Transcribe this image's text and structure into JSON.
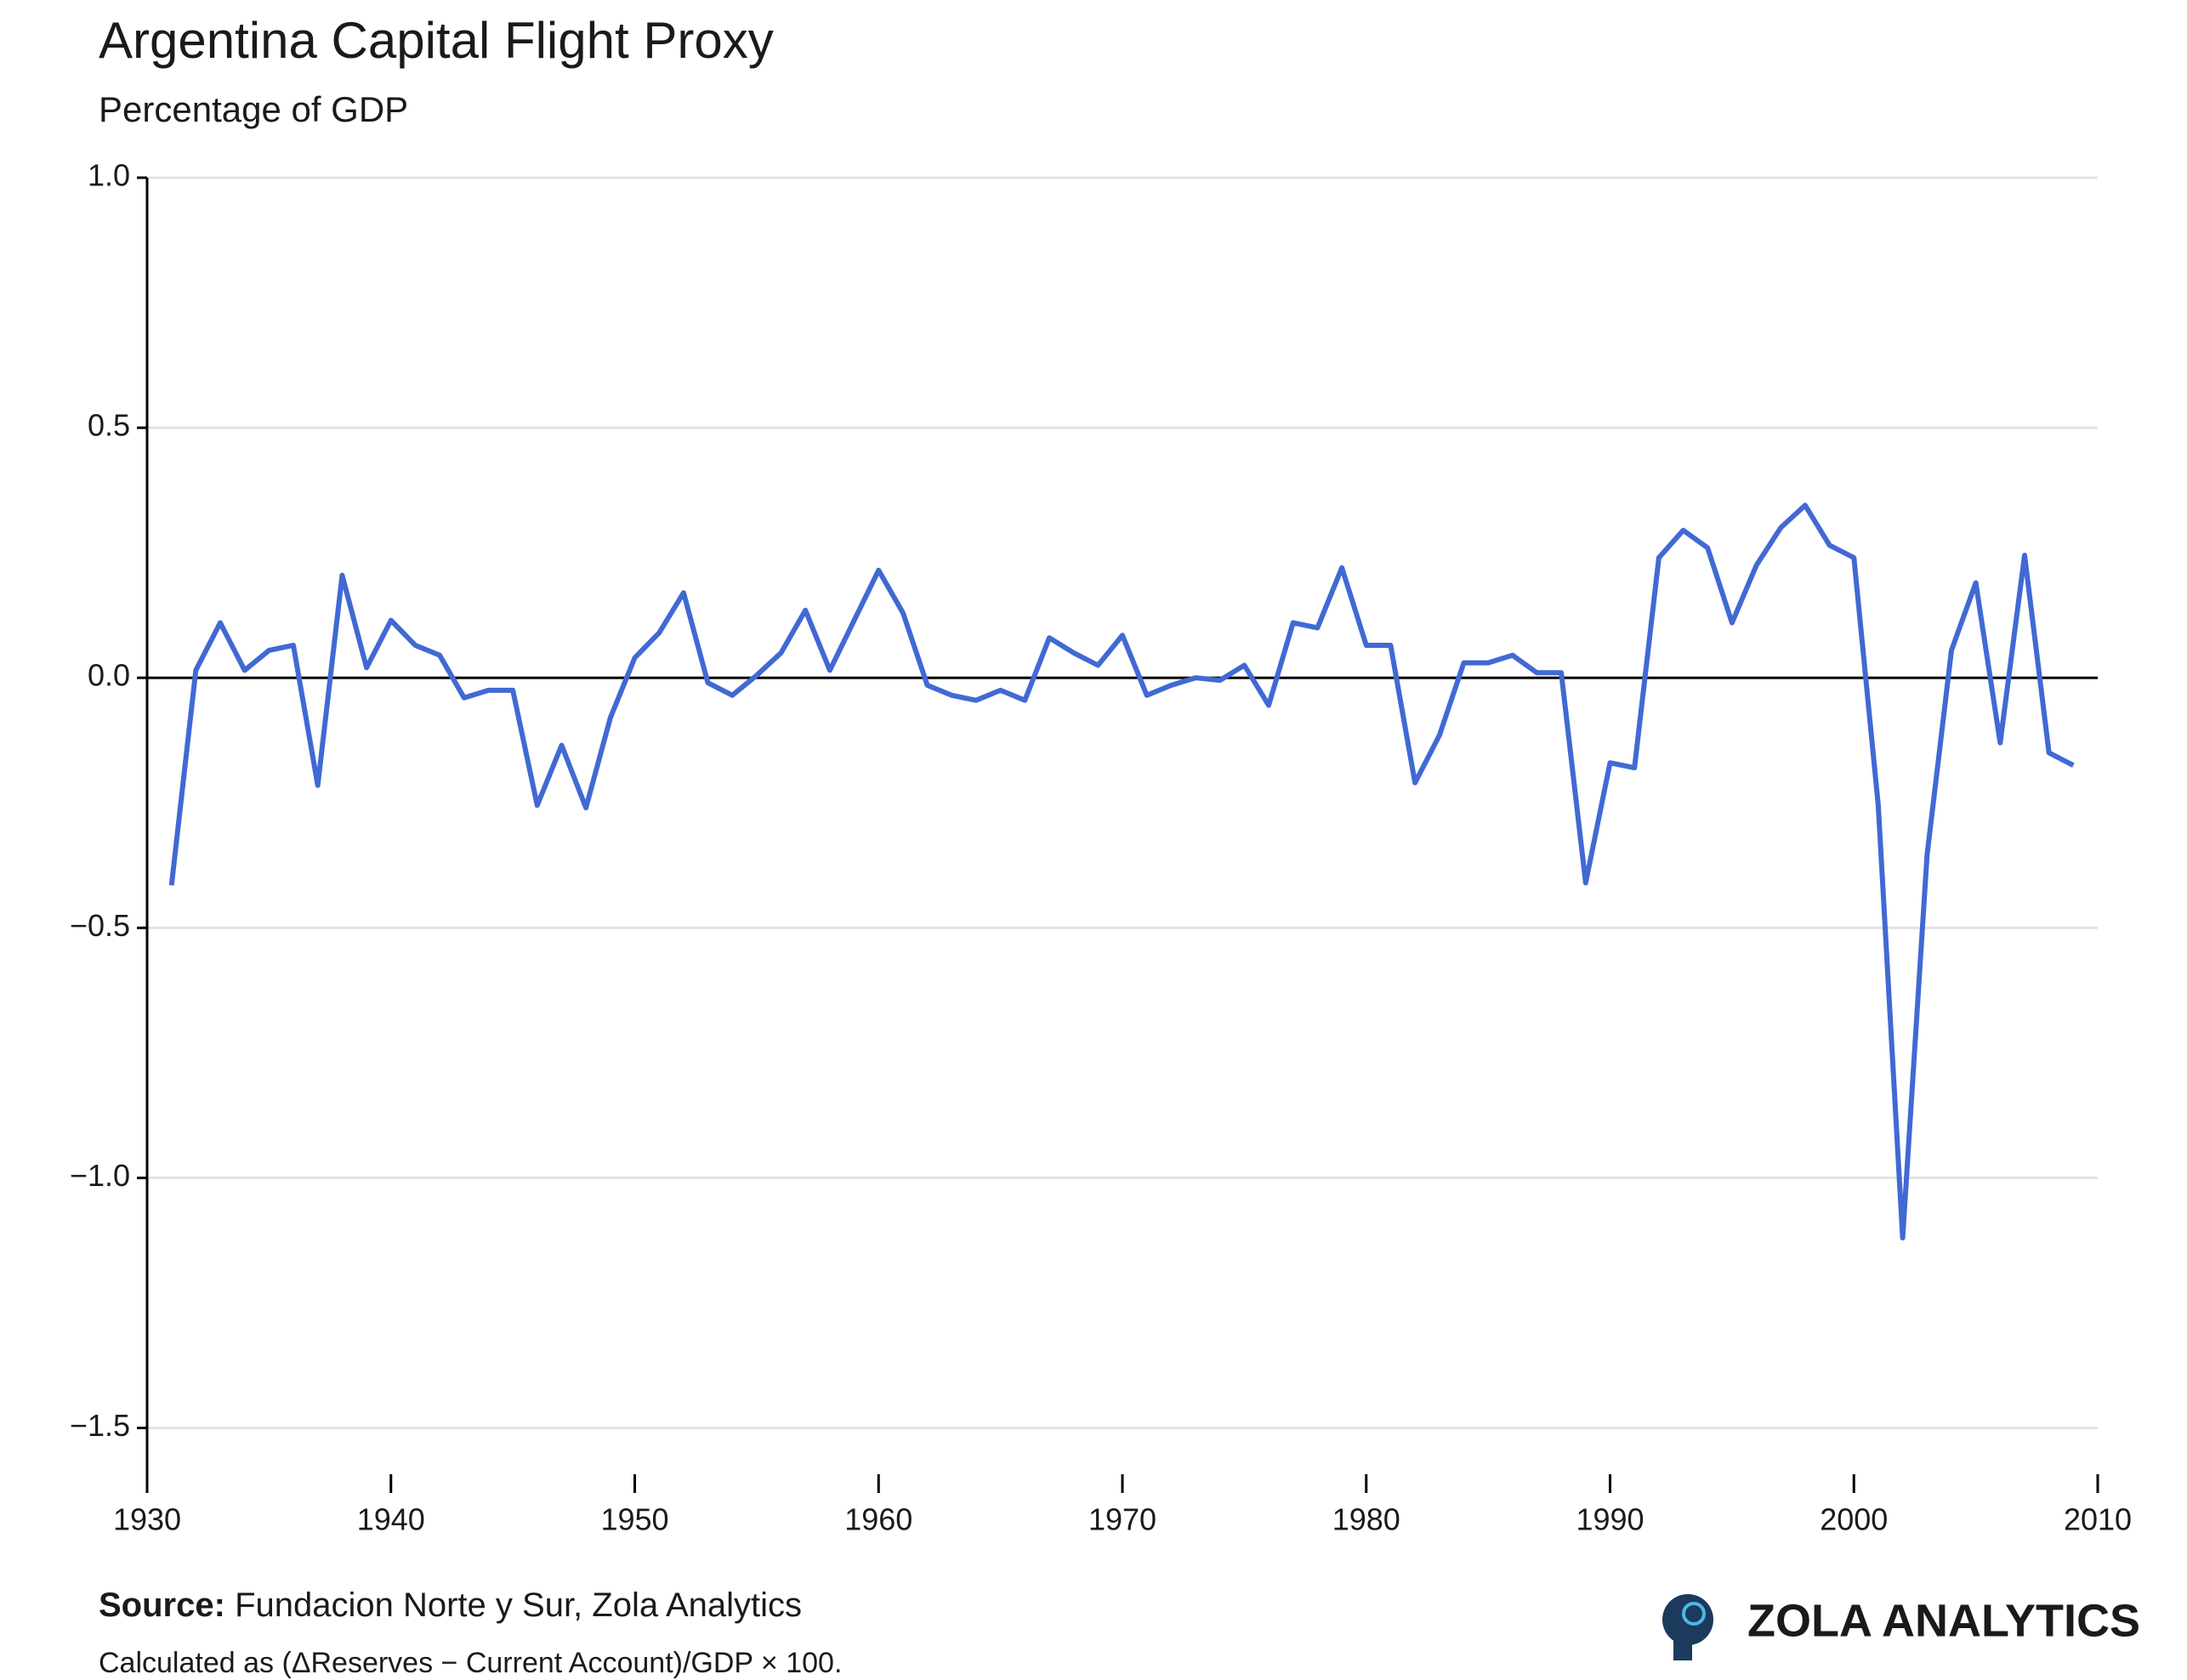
{
  "chart_data": {
    "type": "line",
    "title": "Argentina Capital Flight Proxy",
    "subtitle": "Percentage of GDP",
    "x": [
      1931,
      1932,
      1933,
      1934,
      1935,
      1936,
      1937,
      1938,
      1939,
      1940,
      1941,
      1942,
      1943,
      1944,
      1945,
      1946,
      1947,
      1948,
      1949,
      1950,
      1951,
      1952,
      1953,
      1954,
      1955,
      1956,
      1957,
      1958,
      1959,
      1960,
      1961,
      1962,
      1963,
      1964,
      1965,
      1966,
      1967,
      1968,
      1969,
      1970,
      1971,
      1972,
      1973,
      1974,
      1975,
      1976,
      1977,
      1978,
      1979,
      1980,
      1981,
      1982,
      1983,
      1984,
      1985,
      1986,
      1987,
      1988,
      1989,
      1990,
      1991,
      1992,
      1993,
      1994,
      1995,
      1996,
      1997,
      1998,
      1999,
      2000,
      2001,
      2002,
      2003,
      2004,
      2005,
      2006,
      2007,
      2008,
      2009
    ],
    "values": [
      -0.415,
      0.015,
      0.11,
      0.015,
      0.055,
      0.065,
      -0.215,
      0.205,
      0.02,
      0.115,
      0.065,
      0.045,
      -0.04,
      -0.025,
      -0.025,
      -0.255,
      -0.135,
      -0.26,
      -0.08,
      0.04,
      0.09,
      0.17,
      -0.01,
      -0.035,
      0.005,
      0.05,
      0.135,
      0.015,
      0.115,
      0.215,
      0.13,
      -0.015,
      -0.035,
      -0.045,
      -0.025,
      -0.045,
      0.08,
      0.05,
      0.025,
      0.085,
      -0.035,
      -0.015,
      0.0,
      -0.005,
      0.025,
      -0.055,
      0.11,
      0.1,
      0.22,
      0.065,
      0.065,
      -0.21,
      -0.115,
      0.03,
      0.03,
      0.045,
      0.01,
      0.01,
      -0.41,
      -0.17,
      -0.18,
      0.24,
      0.295,
      0.26,
      0.11,
      0.225,
      0.3,
      0.345,
      0.265,
      0.24,
      -0.255,
      -1.12,
      -0.355,
      0.055,
      0.19,
      -0.13,
      0.245,
      -0.15,
      -0.175
    ],
    "color": "#4169d4",
    "xlim": [
      1930,
      2010
    ],
    "xticks": [
      1930,
      1940,
      1950,
      1960,
      1970,
      1980,
      1990,
      2000,
      2010
    ],
    "ylim": [
      -1.63,
      1.0
    ],
    "yticks": [
      {
        "value": 1.0,
        "label": "1.0"
      },
      0.5,
      {
        "value": 0,
        "label": "0.0"
      },
      {
        "value": -0.5,
        "label": "−0.5"
      },
      {
        "value": -1.0,
        "label": "−1.0"
      },
      {
        "value": -1.5,
        "label": "−1.5"
      }
    ],
    "grid": true,
    "source_label": "Source:",
    "source": "Fundacion Norte y Sur, Zola Analytics",
    "note": "Calculated as (ΔReserves − Current Account)/GDP × 100.",
    "brand": "ZOLA ANALYTICS"
  }
}
